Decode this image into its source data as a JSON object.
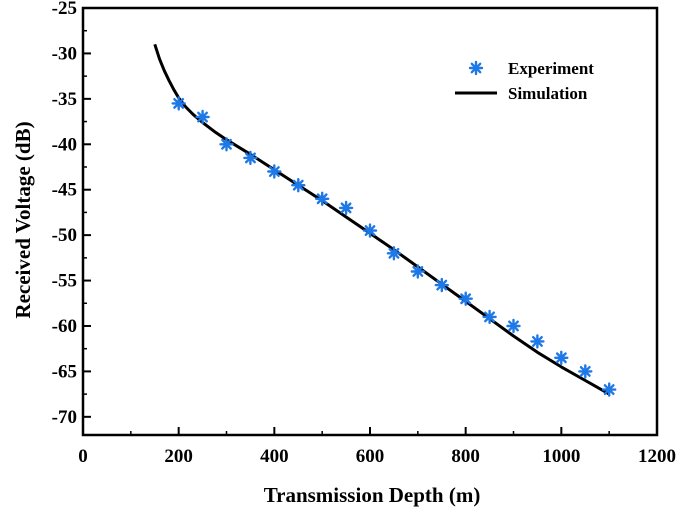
{
  "chart_data": {
    "type": "scatter+line",
    "title": "",
    "xlabel": "Transmission Depth (m)",
    "ylabel": "Received Voltage (dB)",
    "xlim": [
      0,
      1200
    ],
    "ylim": [
      -72,
      -25
    ],
    "x_ticks": [
      0,
      200,
      400,
      600,
      800,
      1000,
      1200
    ],
    "y_ticks": [
      -25,
      -30,
      -35,
      -40,
      -45,
      -50,
      -55,
      -60,
      -65,
      -70
    ],
    "grid": false,
    "legend_position": "top-right",
    "series": [
      {
        "name": "Experiment",
        "kind": "scatter",
        "marker": "asterisk",
        "color": "#1e78e6",
        "points": [
          [
            200,
            -35.5
          ],
          [
            250,
            -37.0
          ],
          [
            300,
            -40.0
          ],
          [
            350,
            -41.5
          ],
          [
            400,
            -43.0
          ],
          [
            450,
            -44.5
          ],
          [
            500,
            -46.0
          ],
          [
            550,
            -47.0
          ],
          [
            600,
            -49.5
          ],
          [
            650,
            -52.0
          ],
          [
            700,
            -54.0
          ],
          [
            750,
            -55.5
          ],
          [
            800,
            -57.0
          ],
          [
            850,
            -59.0
          ],
          [
            900,
            -60.0
          ],
          [
            950,
            -61.7
          ],
          [
            1000,
            -63.5
          ],
          [
            1050,
            -65.0
          ],
          [
            1100,
            -67.0
          ]
        ]
      },
      {
        "name": "Simulation",
        "kind": "line",
        "color": "#000000",
        "points": [
          [
            150,
            -29.0
          ],
          [
            160,
            -30.6
          ],
          [
            170,
            -31.9
          ],
          [
            180,
            -33.0
          ],
          [
            190,
            -34.0
          ],
          [
            200,
            -34.9
          ],
          [
            215,
            -35.9
          ],
          [
            230,
            -36.7
          ],
          [
            250,
            -37.6
          ],
          [
            275,
            -38.6
          ],
          [
            300,
            -39.5
          ],
          [
            350,
            -41.1
          ],
          [
            400,
            -42.8
          ],
          [
            450,
            -44.5
          ],
          [
            500,
            -46.2
          ],
          [
            550,
            -48.0
          ],
          [
            600,
            -49.8
          ],
          [
            650,
            -51.6
          ],
          [
            700,
            -53.5
          ],
          [
            750,
            -55.4
          ],
          [
            800,
            -57.3
          ],
          [
            850,
            -59.2
          ],
          [
            900,
            -61.1
          ],
          [
            950,
            -62.9
          ],
          [
            1000,
            -64.5
          ],
          [
            1050,
            -66.0
          ],
          [
            1100,
            -67.5
          ]
        ]
      }
    ]
  }
}
